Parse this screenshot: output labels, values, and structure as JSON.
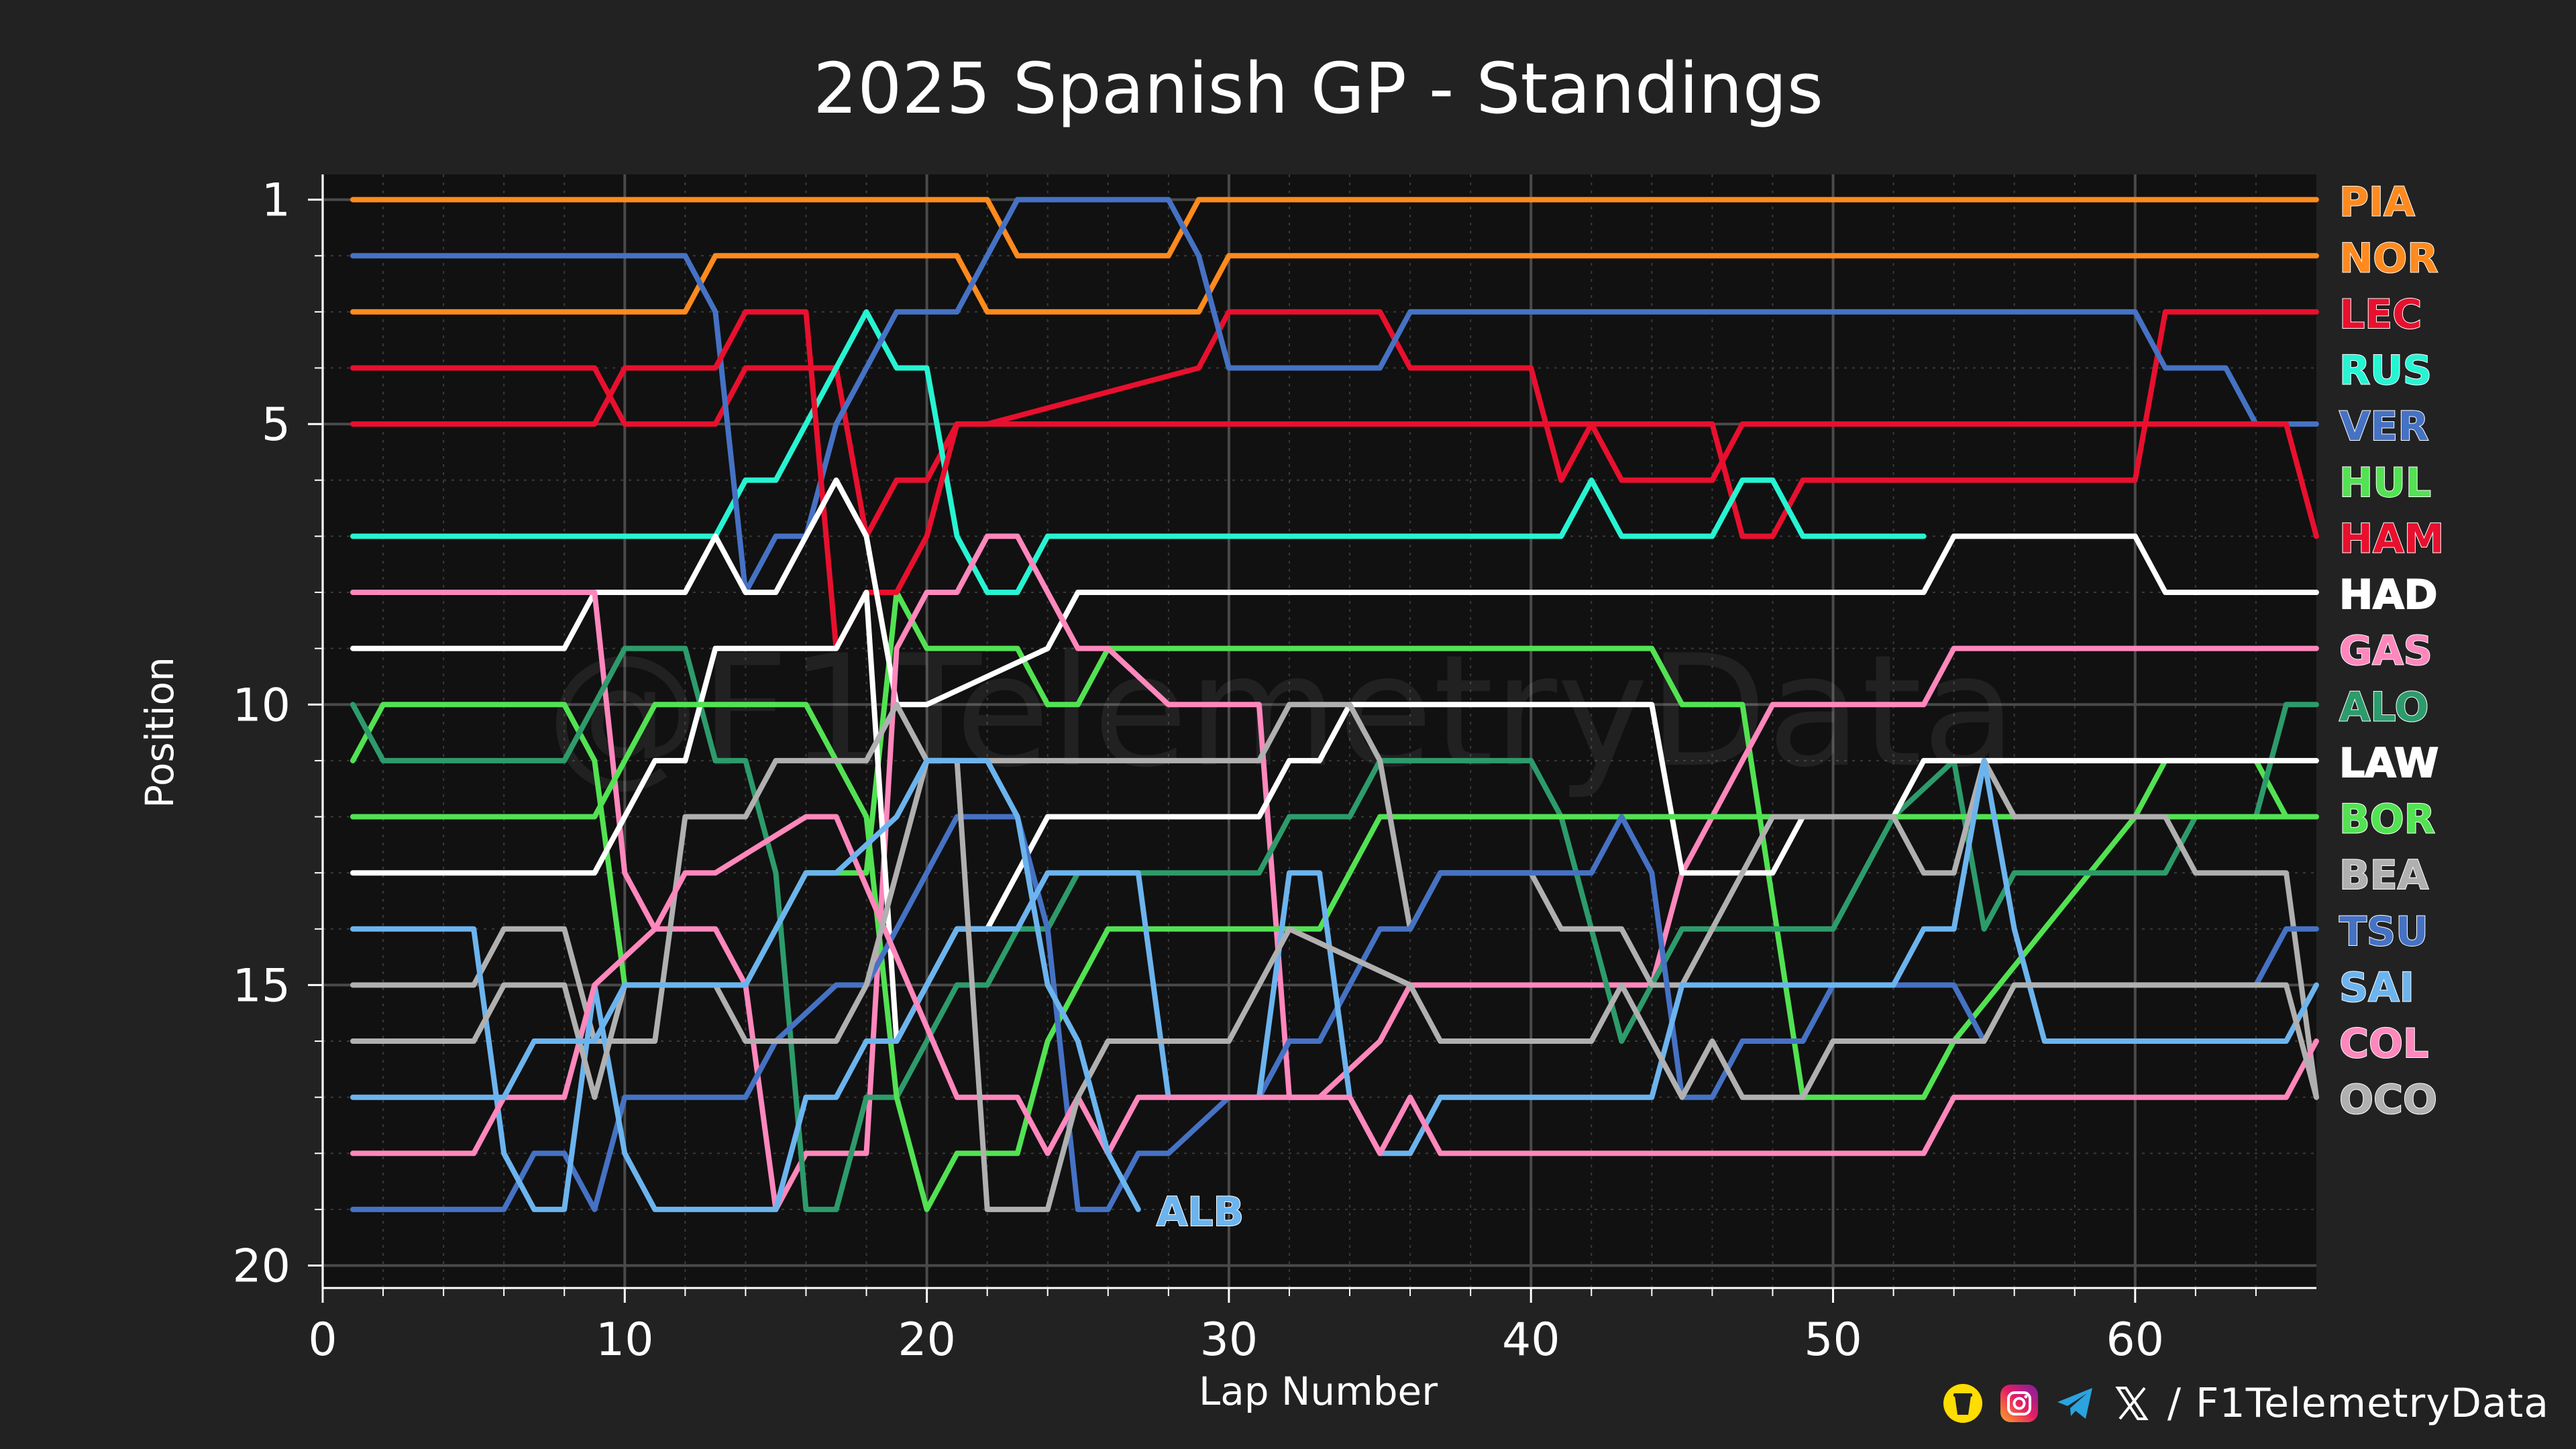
{
  "footer": {
    "separator": "/",
    "handle": "F1TelemetryData",
    "icons": [
      "buymeacoffee-icon",
      "instagram-icon",
      "telegram-icon",
      "x-icon"
    ]
  },
  "watermark": "@F1TelemetryData",
  "chart_data": {
    "type": "line",
    "title": "2025 Spanish GP - Standings",
    "xlabel": "Lap Number",
    "ylabel": "Position",
    "xlim": [
      0,
      66
    ],
    "ylim": [
      20.4,
      0.55
    ],
    "xticks": [
      0,
      10,
      20,
      30,
      40,
      50,
      60
    ],
    "yticks": [
      1,
      5,
      10,
      15,
      20
    ],
    "grid": true,
    "legend": "right-of-plot, driver code labels at final position",
    "series": [
      {
        "name": "PIA",
        "color": "#ff8a1e",
        "x": [
          1,
          22,
          23,
          28,
          29,
          66
        ],
        "y": [
          1,
          1,
          2,
          2,
          1,
          1
        ]
      },
      {
        "name": "NOR",
        "color": "#ff8a1e",
        "x": [
          1,
          12,
          13,
          21,
          22,
          29,
          30,
          66
        ],
        "y": [
          3,
          3,
          2,
          2,
          3,
          3,
          2,
          2
        ]
      },
      {
        "name": "LEC",
        "color": "#e8102e",
        "x": [
          1,
          9,
          10,
          13,
          14,
          17,
          18,
          19,
          20,
          21,
          22,
          29,
          30,
          35,
          36,
          40,
          41,
          42,
          43,
          46,
          47,
          48,
          49,
          60,
          61,
          66
        ],
        "y": [
          4,
          4,
          5,
          5,
          4,
          4,
          7,
          6,
          6,
          5,
          5,
          4,
          3,
          3,
          4,
          4,
          6,
          5,
          5,
          5,
          7,
          7,
          6,
          6,
          3,
          3
        ]
      },
      {
        "name": "RUS",
        "color": "#27f4d2",
        "x": [
          1,
          13,
          14,
          15,
          16,
          17,
          18,
          19,
          20,
          21,
          22,
          23,
          24,
          41,
          42,
          43,
          46,
          47,
          48,
          49,
          53
        ],
        "y": [
          7,
          7,
          6,
          6,
          5,
          4,
          3,
          4,
          4,
          7,
          8,
          8,
          7,
          7,
          6,
          7,
          7,
          6,
          6,
          7,
          7
        ]
      },
      {
        "name": "VER",
        "color": "#4672c4",
        "x": [
          1,
          12,
          13,
          14,
          15,
          16,
          17,
          18,
          19,
          20,
          21,
          22,
          23,
          28,
          29,
          30,
          35,
          36,
          60,
          61,
          63,
          64,
          66
        ],
        "y": [
          2,
          2,
          3,
          8,
          7,
          7,
          5,
          4,
          3,
          3,
          3,
          2,
          1,
          1,
          2,
          4,
          4,
          3,
          3,
          4,
          4,
          5,
          5
        ]
      },
      {
        "name": "HUL",
        "color": "#52e252",
        "x": [
          1,
          2,
          8,
          9,
          10,
          14,
          15,
          16,
          18,
          19,
          20,
          21,
          22,
          23,
          24,
          25,
          26,
          27,
          44,
          45,
          46,
          47,
          49,
          50,
          53,
          54,
          60,
          61,
          62,
          63,
          64,
          65,
          66
        ],
        "y": [
          11,
          10,
          10,
          11,
          15,
          15,
          14,
          13,
          13,
          8,
          9,
          9,
          9,
          9,
          10,
          10,
          9,
          9,
          9,
          10,
          10,
          10,
          17,
          17,
          17,
          16,
          12,
          11,
          11,
          11,
          11,
          12,
          12
        ]
      },
      {
        "name": "HAM",
        "color": "#e8102e",
        "x": [
          1,
          9,
          10,
          13,
          14,
          16,
          17,
          18,
          19,
          20,
          21,
          42,
          43,
          46,
          47,
          60,
          65,
          66
        ],
        "y": [
          5,
          5,
          4,
          4,
          3,
          3,
          9,
          8,
          8,
          7,
          5,
          5,
          6,
          6,
          5,
          5,
          5,
          7
        ]
      },
      {
        "name": "HAD",
        "color": "#ffffff",
        "x": [
          1,
          8,
          9,
          12,
          13,
          14,
          15,
          16,
          17,
          18,
          19,
          20,
          24,
          25,
          53,
          54,
          60,
          61,
          66
        ],
        "y": [
          9,
          9,
          8,
          8,
          7,
          8,
          8,
          7,
          6,
          7,
          10,
          10,
          9,
          8,
          8,
          7,
          7,
          8,
          8
        ]
      },
      {
        "name": "GAS",
        "color": "#ff87bc",
        "x": [
          1,
          9,
          10,
          11,
          13,
          14,
          15,
          16,
          18,
          19,
          20,
          21,
          22,
          23,
          24,
          25,
          26,
          28,
          29,
          31,
          32,
          33,
          35,
          36,
          44,
          45,
          47,
          48,
          53,
          54,
          66
        ],
        "y": [
          8,
          8,
          13,
          14,
          14,
          15,
          19,
          18,
          18,
          9,
          8,
          8,
          7,
          7,
          8,
          9,
          9,
          10,
          10,
          10,
          17,
          17,
          16,
          15,
          15,
          13,
          11,
          10,
          10,
          9,
          9
        ]
      },
      {
        "name": "ALO",
        "color": "#2d9b6b",
        "x": [
          1,
          2,
          8,
          9,
          10,
          12,
          13,
          14,
          15,
          16,
          17,
          18,
          19,
          20,
          21,
          22,
          23,
          24,
          25,
          31,
          32,
          34,
          35,
          40,
          41,
          42,
          43,
          44,
          45,
          50,
          51,
          52,
          54,
          55,
          56,
          61,
          62,
          64,
          65,
          66
        ],
        "y": [
          10,
          11,
          11,
          10,
          9,
          9,
          11,
          11,
          13,
          19,
          19,
          17,
          17,
          16,
          15,
          15,
          14,
          14,
          13,
          13,
          12,
          12,
          11,
          11,
          12,
          14,
          16,
          15,
          14,
          14,
          13,
          12,
          11,
          14,
          13,
          13,
          12,
          12,
          10,
          10
        ]
      },
      {
        "name": "LAW",
        "color": "#ffffff",
        "x": [
          1,
          9,
          10,
          11,
          12,
          13,
          17,
          18,
          19,
          20,
          21,
          22,
          23,
          24,
          31,
          32,
          33,
          34,
          35,
          44,
          45,
          48,
          49,
          52,
          53,
          66
        ],
        "y": [
          13,
          13,
          12,
          11,
          11,
          9,
          9,
          8,
          16,
          15,
          14,
          14,
          13,
          12,
          12,
          11,
          11,
          10,
          10,
          10,
          13,
          13,
          12,
          12,
          11,
          11
        ]
      },
      {
        "name": "BOR",
        "color": "#52e252",
        "x": [
          1,
          9,
          10,
          11,
          16,
          17,
          18,
          19,
          20,
          21,
          23,
          24,
          25,
          26,
          31,
          32,
          33,
          34,
          35,
          38,
          39,
          65,
          66
        ],
        "y": [
          12,
          12,
          11,
          10,
          10,
          11,
          12,
          17,
          19,
          18,
          18,
          16,
          15,
          14,
          14,
          14,
          14,
          13,
          12,
          12,
          12,
          12,
          12
        ]
      },
      {
        "name": "BEA",
        "color": "#b0b0b0",
        "x": [
          1,
          5,
          6,
          8,
          9,
          11,
          12,
          14,
          15,
          16,
          18,
          19,
          20,
          21,
          22,
          31,
          32,
          34,
          35,
          36,
          37,
          40,
          41,
          43,
          44,
          45,
          48,
          49,
          52,
          53,
          54,
          55,
          56,
          61,
          62,
          65,
          66
        ],
        "y": [
          15,
          15,
          14,
          14,
          16,
          16,
          12,
          12,
          11,
          11,
          11,
          10,
          11,
          11,
          11,
          11,
          10,
          10,
          11,
          14,
          13,
          13,
          14,
          14,
          15,
          15,
          12,
          12,
          12,
          13,
          13,
          11,
          12,
          12,
          13,
          13,
          17
        ]
      },
      {
        "name": "TSU",
        "color": "#4672c4",
        "x": [
          1,
          6,
          7,
          8,
          9,
          10,
          14,
          15,
          17,
          18,
          19,
          20,
          21,
          23,
          24,
          25,
          26,
          27,
          28,
          30,
          31,
          32,
          33,
          34,
          35,
          36,
          37,
          42,
          43,
          44,
          45,
          46,
          47,
          49,
          50,
          54,
          55,
          56,
          63,
          64,
          65,
          66
        ],
        "y": [
          19,
          19,
          18,
          18,
          19,
          17,
          17,
          16,
          15,
          15,
          14,
          13,
          12,
          12,
          14,
          19,
          19,
          18,
          18,
          17,
          17,
          16,
          16,
          15,
          14,
          14,
          13,
          13,
          12,
          13,
          17,
          17,
          16,
          16,
          15,
          15,
          16,
          15,
          15,
          15,
          14,
          14
        ]
      },
      {
        "name": "SAI",
        "color": "#6cb4ee",
        "x": [
          1,
          5,
          6,
          7,
          8,
          9,
          10,
          11,
          12,
          15,
          16,
          17,
          18,
          19,
          20,
          21,
          23,
          24,
          25,
          26,
          27,
          28,
          31,
          32,
          33,
          34,
          35,
          36,
          37,
          43,
          44,
          45,
          52,
          53,
          54,
          55,
          56,
          57,
          65,
          66
        ],
        "y": [
          14,
          14,
          18,
          19,
          19,
          15,
          18,
          19,
          19,
          19,
          17,
          17,
          16,
          16,
          15,
          14,
          14,
          13,
          13,
          13,
          13,
          17,
          17,
          13,
          13,
          17,
          18,
          18,
          17,
          17,
          17,
          15,
          15,
          14,
          14,
          11,
          14,
          16,
          16,
          15
        ]
      },
      {
        "name": "COL",
        "color": "#ff87bc",
        "x": [
          1,
          5,
          6,
          8,
          9,
          11,
          12,
          13,
          16,
          17,
          21,
          22,
          23,
          24,
          25,
          26,
          27,
          28,
          34,
          35,
          36,
          37,
          52,
          53,
          54,
          65,
          66
        ],
        "y": [
          18,
          18,
          17,
          17,
          15,
          14,
          13,
          13,
          12,
          12,
          17,
          17,
          17,
          18,
          17,
          18,
          17,
          17,
          17,
          18,
          17,
          18,
          18,
          18,
          17,
          17,
          16
        ]
      },
      {
        "name": "OCO",
        "color": "#b0b0b0",
        "x": [
          1,
          5,
          6,
          8,
          9,
          10,
          11,
          13,
          14,
          15,
          16,
          17,
          18,
          19,
          20,
          21,
          22,
          24,
          25,
          26,
          30,
          31,
          32,
          36,
          37,
          41,
          42,
          43,
          44,
          45,
          46,
          47,
          48,
          49,
          50,
          52,
          53,
          54,
          55,
          56,
          57,
          65,
          66
        ],
        "y": [
          16,
          16,
          15,
          15,
          17,
          15,
          15,
          15,
          16,
          16,
          16,
          16,
          15,
          13,
          11,
          11,
          19,
          19,
          17,
          16,
          16,
          15,
          14,
          15,
          16,
          16,
          16,
          15,
          16,
          17,
          16,
          17,
          17,
          17,
          16,
          16,
          16,
          16,
          16,
          15,
          15,
          15,
          17
        ]
      },
      {
        "name": "ALB",
        "color": "#6cb4ee",
        "x": [
          1,
          6,
          7,
          8,
          9,
          10,
          14,
          15,
          16,
          17,
          19,
          20,
          21,
          22,
          23,
          24,
          25,
          26,
          27
        ],
        "y": [
          17,
          17,
          16,
          16,
          16,
          15,
          15,
          14,
          13,
          13,
          12,
          11,
          11,
          11,
          12,
          15,
          16,
          18,
          19
        ]
      }
    ],
    "end_labels": {
      "right_side": [
        "PIA",
        "NOR",
        "LEC",
        "RUS",
        "VER",
        "HUL",
        "HAM",
        "HAD",
        "GAS",
        "ALO",
        "LAW",
        "BOR",
        "BEA",
        "TSU",
        "SAI",
        "COL",
        "OCO"
      ],
      "inline": {
        "name": "ALB",
        "x": 27.6,
        "y": 19
      }
    }
  }
}
